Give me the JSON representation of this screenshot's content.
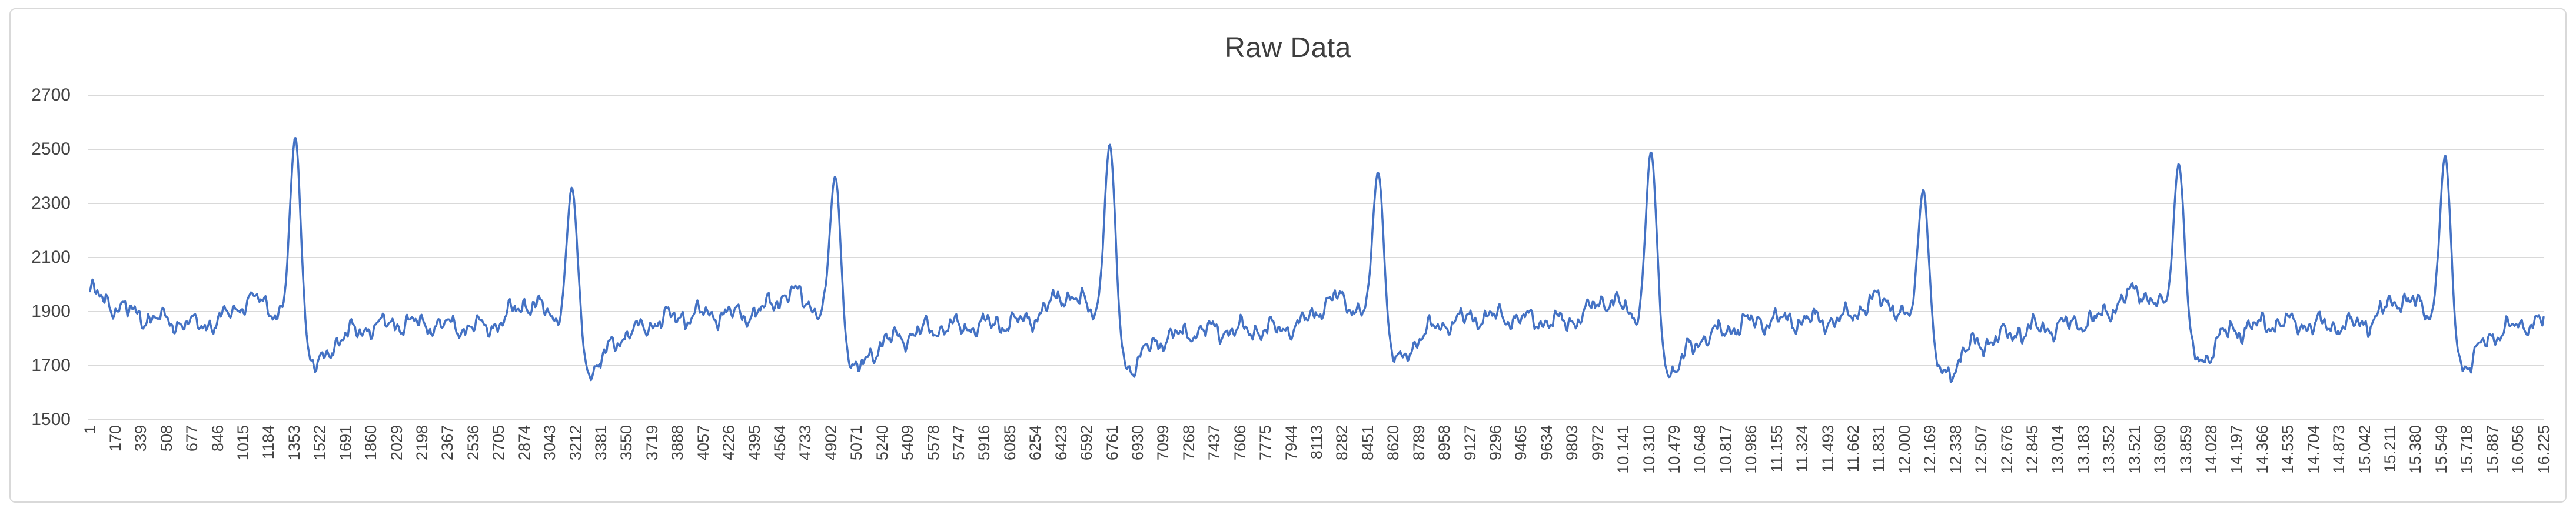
{
  "window": {
    "background": "#FFFFFF"
  },
  "colors": {
    "line": "#4472C4",
    "grid": "#D9D9D9",
    "chart_border": "#D9D9D9",
    "axis_label": "#444444",
    "title": "#3F3F3F",
    "background": "#FFFFFF"
  },
  "chart_data": {
    "type": "line",
    "title": "Raw Data",
    "legend": "none",
    "grid": "horizontal",
    "series": [
      {
        "name": "Raw Data",
        "color": "#4472C4",
        "points_total": 16225
      }
    ],
    "y_axis": {
      "min": 1500,
      "max": 2700,
      "tick_interval": 200,
      "tick_labels": [
        "2700",
        "2500",
        "2300",
        "2100",
        "1900",
        "1700",
        "1500"
      ]
    },
    "x_axis": {
      "first_label": "1",
      "step": 169,
      "last_label": "16.225",
      "tick_labels": [
        "1",
        "170",
        "339",
        "508",
        "677",
        "846",
        "1015",
        "1184",
        "1353",
        "1522",
        "1691",
        "1860",
        "2029",
        "2198",
        "2367",
        "2536",
        "2705",
        "2874",
        "3043",
        "3212",
        "3381",
        "3550",
        "3719",
        "3888",
        "4057",
        "4226",
        "4395",
        "4564",
        "4733",
        "4902",
        "5071",
        "5240",
        "5409",
        "5578",
        "5747",
        "5916",
        "6085",
        "6254",
        "6423",
        "6592",
        "6761",
        "6930",
        "7099",
        "7268",
        "7437",
        "7606",
        "7775",
        "7944",
        "8113",
        "8282",
        "8451",
        "8620",
        "8789",
        "8958",
        "9127",
        "9296",
        "9465",
        "9634",
        "9803",
        "9972",
        "10.141",
        "10.310",
        "10.479",
        "10.648",
        "10.817",
        "10.986",
        "11.155",
        "11.324",
        "11.493",
        "11.662",
        "11.831",
        "12.000",
        "12.169",
        "12.338",
        "12.507",
        "12.676",
        "12.845",
        "13.014",
        "13.183",
        "13.352",
        "13.521",
        "13.690",
        "13.859",
        "14.028",
        "14.197",
        "14.366",
        "14.535",
        "14.704",
        "14.873",
        "15.042",
        "15.211",
        "15.380",
        "15.549",
        "15.718",
        "15.887",
        "16.056",
        "16.225"
      ]
    },
    "waveform": {
      "description": "Noisy baseline around 1860 with 9 sharp heartbeat-like spikes, each preceded by a small bump and followed by an undershoot to ~1700",
      "baseline": 1857,
      "start_transient_height": 115,
      "noise_components": [
        {
          "amp": 22,
          "period": 210
        },
        {
          "amp": 16,
          "period": 95
        },
        {
          "amp": 12,
          "period": 52
        },
        {
          "amp": 9,
          "period": 31
        }
      ],
      "drift_components": [
        {
          "amp": 20,
          "period": 2400
        },
        {
          "amp": 12,
          "period": 5100
        }
      ],
      "jitter_amp": 14,
      "beats": [
        {
          "x": 1360,
          "peak": 2585
        },
        {
          "x": 3190,
          "peak": 2415
        },
        {
          "x": 4930,
          "peak": 2450
        },
        {
          "x": 6745,
          "peak": 2555
        },
        {
          "x": 8520,
          "peak": 2455
        },
        {
          "x": 10325,
          "peak": 2550
        },
        {
          "x": 12125,
          "peak": 2425
        },
        {
          "x": 13815,
          "peak": 2470
        },
        {
          "x": 15575,
          "peak": 2515
        }
      ],
      "beat_shape": {
        "spike_sigma": 36,
        "pre_bump_amp": 95,
        "pre_bump_offset": -285,
        "pre_bump_sigma": 120,
        "undershoot_amp": -150,
        "undershoot_offset": 125,
        "undershoot_sigma": 85,
        "post_dip_amp": -45,
        "post_dip_offset": 330,
        "post_dip_sigma": 150
      }
    }
  }
}
